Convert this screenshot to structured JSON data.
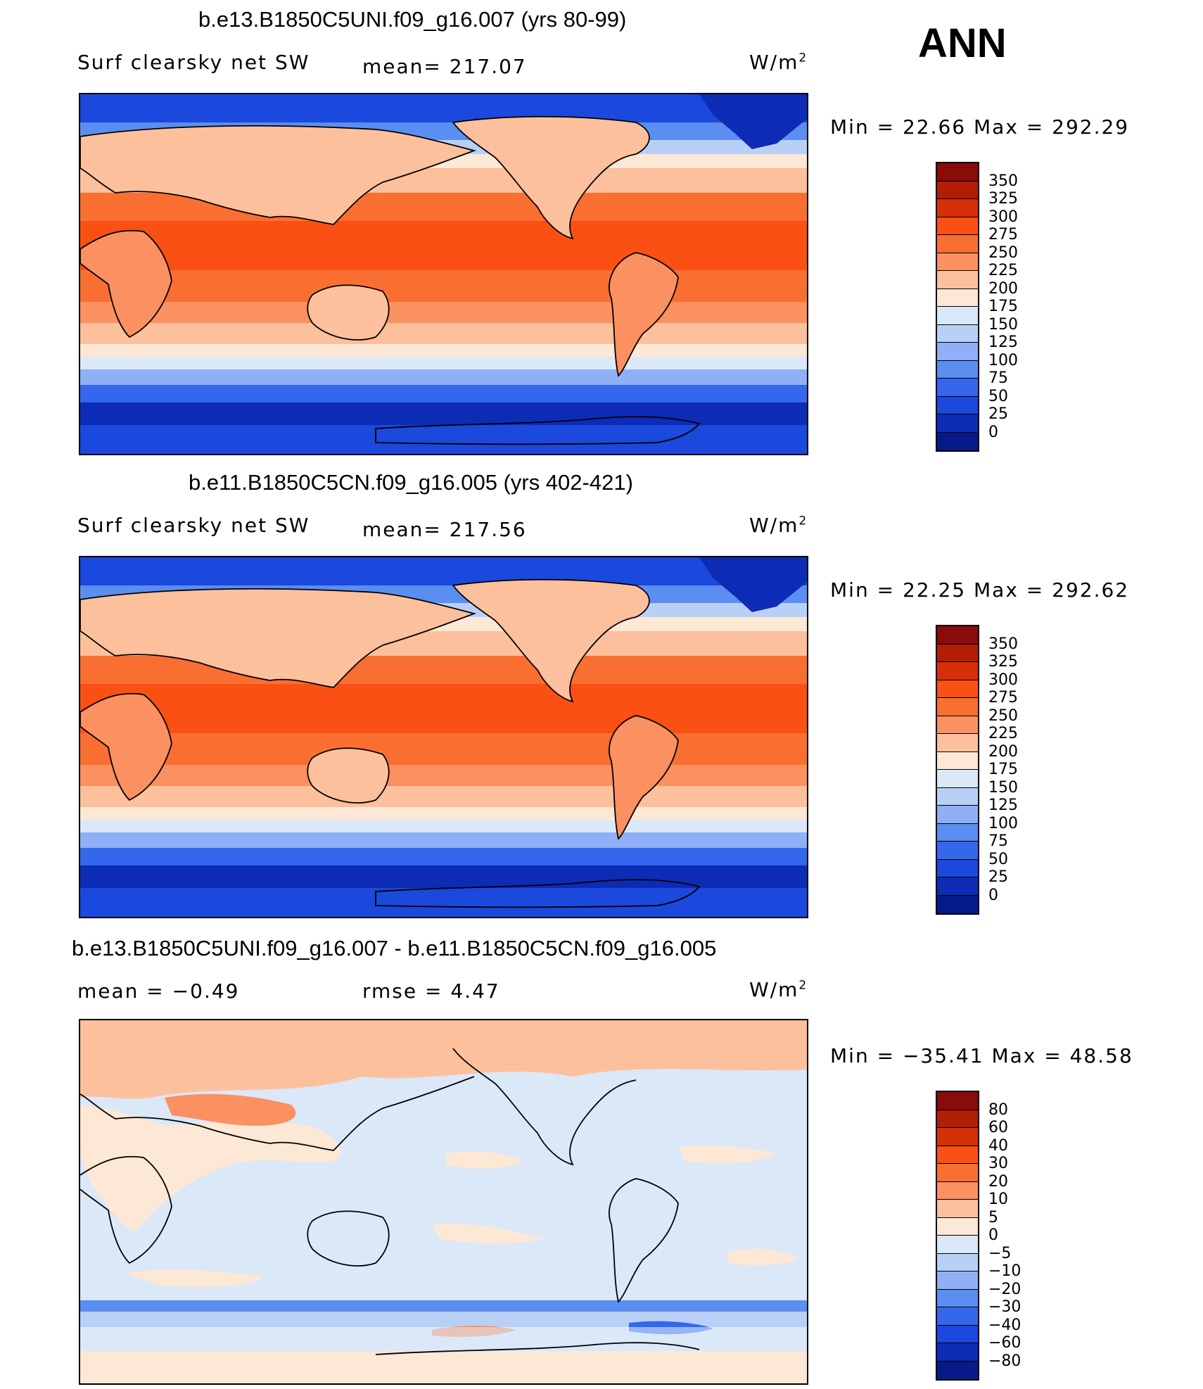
{
  "season": "ANN",
  "panels": [
    {
      "title": "b.e13.B1850C5UNI.f09_g16.007 (yrs 80-99)",
      "left_label": "Surf clearsky net SW",
      "center_label": "mean= 217.07",
      "units": "W/m",
      "units_sup": "2",
      "minmax": "Min =   22.66 Max = 292.29",
      "field": "abs"
    },
    {
      "title": "b.e11.B1850C5CN.f09_g16.005 (yrs 402-421)",
      "left_label": "Surf clearsky net SW",
      "center_label": "mean= 217.56",
      "units": "W/m",
      "units_sup": "2",
      "minmax": "Min =   22.25 Max = 292.62",
      "field": "abs"
    },
    {
      "title": "b.e13.B1850C5UNI.f09_g16.007 - b.e11.B1850C5CN.f09_g16.005",
      "left_label": "mean =   −0.49",
      "center_label": "rmse =    4.47",
      "units": "W/m",
      "units_sup": "2",
      "minmax": "Min = −35.41 Max =   48.58",
      "field": "diff"
    }
  ],
  "colorbar_abs": {
    "labels": [
      "350",
      "325",
      "300",
      "275",
      "250",
      "225",
      "200",
      "175",
      "150",
      "125",
      "100",
      "75",
      "50",
      "25",
      "0"
    ],
    "colors": [
      "#8b0a0a",
      "#b21e05",
      "#d6300a",
      "#fa5014",
      "#f96f32",
      "#fb9060",
      "#fcc09c",
      "#fde8d6",
      "#dbe8f8",
      "#b9d0f6",
      "#8fb0f6",
      "#5a8ef0",
      "#3467eb",
      "#1b48dd",
      "#0c2cb6",
      "#061a8c"
    ]
  },
  "colorbar_diff": {
    "labels": [
      "80",
      "60",
      "40",
      "30",
      "20",
      "10",
      "5",
      "0",
      "−5",
      "−10",
      "−20",
      "−30",
      "−40",
      "−60",
      "−80"
    ],
    "colors": [
      "#8b0a0a",
      "#b21e05",
      "#d6300a",
      "#fa5014",
      "#f96f32",
      "#fb9060",
      "#fcc09c",
      "#fde8d6",
      "#dbe8f8",
      "#b9d0f6",
      "#8fb0f6",
      "#5a8ef0",
      "#3467eb",
      "#1b48dd",
      "#0c2cb6",
      "#061a8c"
    ]
  }
}
